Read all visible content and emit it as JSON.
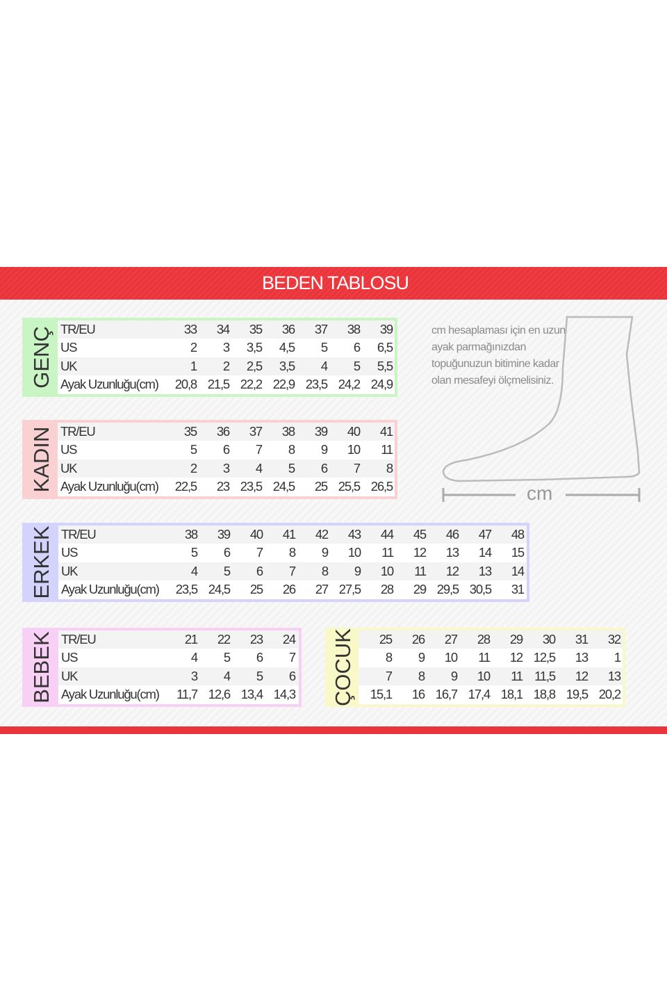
{
  "title": "BEDEN TABLOSU",
  "note": "cm hesaplaması için en uzun ayak parmağınızdan topuğunuzun bitimine kadar olan mesafeyi ölçmelisiniz.",
  "ruler_label": "cm",
  "row_labels": [
    "TR/EU",
    "US",
    "UK",
    "Ayak Uzunluğu(cm)"
  ],
  "tables": [
    {
      "name": "GENÇ",
      "color": "#c9f5c4",
      "rows": [
        [
          "33",
          "34",
          "35",
          "36",
          "37",
          "38",
          "39"
        ],
        [
          "2",
          "3",
          "3,5",
          "4,5",
          "5",
          "6",
          "6,5"
        ],
        [
          "1",
          "2",
          "2,5",
          "3,5",
          "4",
          "5",
          "5,5"
        ],
        [
          "20,8",
          "21,5",
          "22,2",
          "22,9",
          "23,5",
          "24,2",
          "24,9"
        ]
      ]
    },
    {
      "name": "KADIN",
      "color": "#f9d1d3",
      "rows": [
        [
          "35",
          "36",
          "37",
          "38",
          "39",
          "40",
          "41"
        ],
        [
          "5",
          "6",
          "7",
          "8",
          "9",
          "10",
          "11"
        ],
        [
          "2",
          "3",
          "4",
          "5",
          "6",
          "7",
          "8"
        ],
        [
          "22,5",
          "23",
          "23,5",
          "24,5",
          "25",
          "25,5",
          "26,5"
        ]
      ]
    },
    {
      "name": "ERKEK",
      "color": "#d3d3fb",
      "rows": [
        [
          "38",
          "39",
          "40",
          "41",
          "42",
          "43",
          "44",
          "45",
          "46",
          "47",
          "48"
        ],
        [
          "5",
          "6",
          "7",
          "8",
          "9",
          "10",
          "11",
          "12",
          "13",
          "14",
          "15"
        ],
        [
          "4",
          "5",
          "6",
          "7",
          "8",
          "9",
          "10",
          "11",
          "12",
          "13",
          "14"
        ],
        [
          "23,5",
          "24,5",
          "25",
          "26",
          "27",
          "27,5",
          "28",
          "29",
          "29,5",
          "30,5",
          "31"
        ]
      ]
    },
    {
      "name": "BEBEK",
      "color": "#f9d0f5",
      "rows": [
        [
          "21",
          "22",
          "23",
          "24"
        ],
        [
          "4",
          "5",
          "6",
          "7"
        ],
        [
          "3",
          "4",
          "5",
          "6"
        ],
        [
          "11,7",
          "12,6",
          "13,4",
          "14,3"
        ]
      ]
    },
    {
      "name": "ÇOCUK",
      "color": "#f8f8c8",
      "rows": [
        [
          "25",
          "26",
          "27",
          "28",
          "29",
          "30",
          "31",
          "32"
        ],
        [
          "8",
          "9",
          "10",
          "11",
          "12",
          "12,5",
          "13",
          "1"
        ],
        [
          "7",
          "8",
          "9",
          "10",
          "11",
          "11,5",
          "12",
          "13"
        ],
        [
          "15,1",
          "16",
          "16,7",
          "17,4",
          "18,1",
          "18,8",
          "19,5",
          "20,2"
        ]
      ]
    }
  ]
}
